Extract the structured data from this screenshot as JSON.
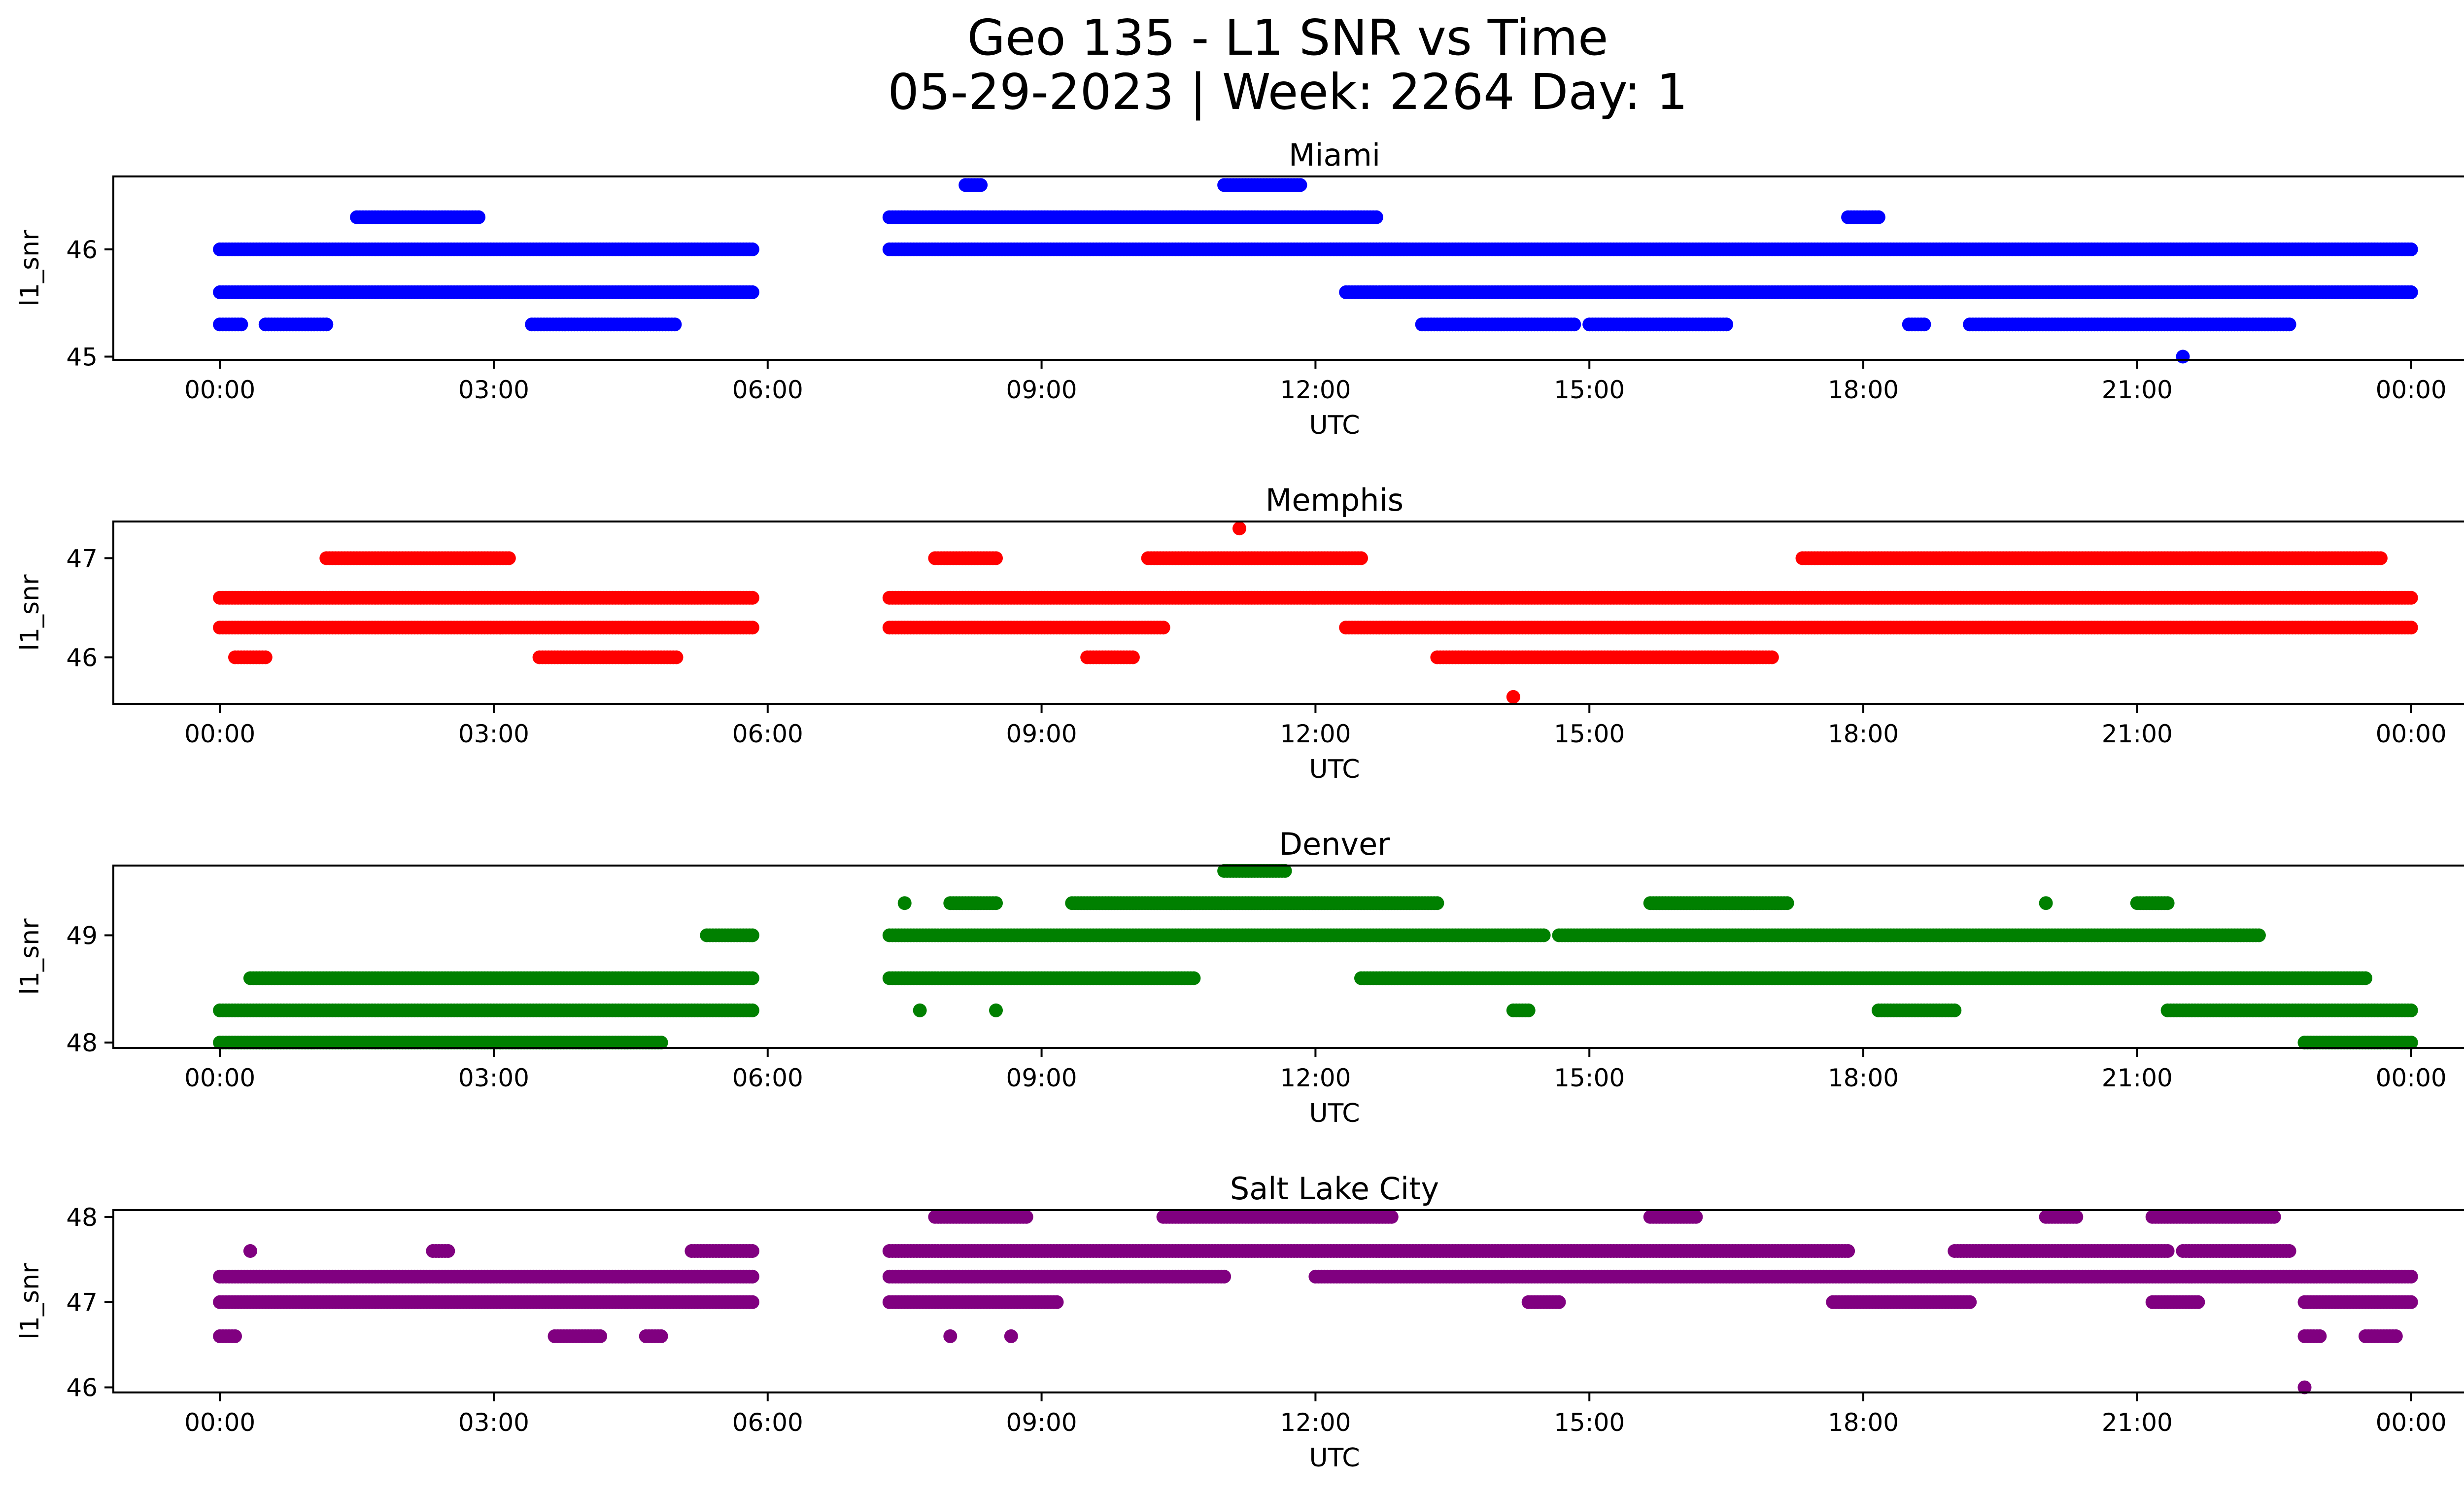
{
  "figure": {
    "title_line1": "Geo 135 - L1 SNR vs Time",
    "title_line2": "05-29-2023 | Week: 2264 Day: 1"
  },
  "chart_data": [
    {
      "type": "scatter",
      "title": "Miami",
      "color": "#0000ff",
      "xlabel": "UTC",
      "ylabel": "l1_snr",
      "xlim": [
        "2023-05-28 22:50",
        "2023-05-30 01:35"
      ],
      "ylim": [
        44.97,
        46.68
      ],
      "xticks": [
        "00:00",
        "03:00",
        "06:00",
        "09:00",
        "12:00",
        "15:00",
        "18:00",
        "21:00",
        "00:00"
      ],
      "yticks": [
        45,
        46
      ],
      "grid": false,
      "series": [
        {
          "y": 46.0,
          "segments": [
            [
              "00:00",
              "05:50"
            ],
            [
              "07:20",
              "13:00"
            ],
            [
              "12:10",
              "24:00"
            ]
          ]
        },
        {
          "y": 45.6,
          "segments": [
            [
              "00:00",
              "05:50"
            ],
            [
              "12:20",
              "24:00"
            ]
          ]
        },
        {
          "y": 45.3,
          "segments": [
            [
              "00:00",
              "00:15"
            ],
            [
              "00:30",
              "01:10"
            ],
            [
              "03:25",
              "05:00"
            ],
            [
              "13:10",
              "14:50"
            ],
            [
              "15:00",
              "16:30"
            ],
            [
              "18:30",
              "18:40"
            ],
            [
              "19:10",
              "22:40"
            ]
          ]
        },
        {
          "y": 46.3,
          "segments": [
            [
              "01:30",
              "02:50"
            ],
            [
              "07:20",
              "12:40"
            ],
            [
              "17:50",
              "18:10"
            ]
          ]
        },
        {
          "y": 46.6,
          "segments": [
            [
              "08:10",
              "08:20"
            ],
            [
              "11:00",
              "11:50"
            ]
          ]
        },
        {
          "y": 45.0,
          "segments": [
            [
              "21:30",
              "21:30"
            ]
          ]
        }
      ]
    },
    {
      "type": "scatter",
      "title": "Memphis",
      "color": "#ff0000",
      "xlabel": "UTC",
      "ylabel": "l1_snr",
      "xlim": [
        "2023-05-28 22:50",
        "2023-05-30 01:35"
      ],
      "ylim": [
        45.53,
        47.37
      ],
      "xticks": [
        "00:00",
        "03:00",
        "06:00",
        "09:00",
        "12:00",
        "15:00",
        "18:00",
        "21:00",
        "00:00"
      ],
      "yticks": [
        46,
        47
      ],
      "grid": false,
      "series": [
        {
          "y": 46.6,
          "segments": [
            [
              "00:00",
              "05:50"
            ],
            [
              "07:20",
              "24:00"
            ]
          ]
        },
        {
          "y": 46.3,
          "segments": [
            [
              "00:00",
              "05:50"
            ],
            [
              "07:20",
              "10:20"
            ],
            [
              "12:20",
              "24:00"
            ]
          ]
        },
        {
          "y": 46.0,
          "segments": [
            [
              "00:10",
              "00:30"
            ],
            [
              "03:30",
              "05:00"
            ],
            [
              "09:30",
              "10:00"
            ],
            [
              "13:20",
              "17:00"
            ]
          ]
        },
        {
          "y": 47.0,
          "segments": [
            [
              "01:10",
              "03:10"
            ],
            [
              "07:50",
              "08:30"
            ],
            [
              "10:10",
              "12:30"
            ],
            [
              "17:20",
              "23:40"
            ]
          ]
        },
        {
          "y": 47.3,
          "segments": [
            [
              "11:10",
              "11:10"
            ]
          ]
        },
        {
          "y": 45.6,
          "segments": [
            [
              "14:10",
              "14:10"
            ]
          ]
        }
      ]
    },
    {
      "type": "scatter",
      "title": "Denver",
      "color": "#008000",
      "xlabel": "UTC",
      "ylabel": "l1_snr",
      "xlim": [
        "2023-05-28 22:50",
        "2023-05-30 01:35"
      ],
      "ylim": [
        47.95,
        49.65
      ],
      "xticks": [
        "00:00",
        "03:00",
        "06:00",
        "09:00",
        "12:00",
        "15:00",
        "18:00",
        "21:00",
        "00:00"
      ],
      "yticks": [
        48,
        49
      ],
      "grid": false,
      "series": [
        {
          "y": 48.3,
          "segments": [
            [
              "00:00",
              "05:50"
            ],
            [
              "07:40",
              "07:40"
            ],
            [
              "08:30",
              "08:30"
            ],
            [
              "14:10",
              "14:20"
            ],
            [
              "18:10",
              "19:00"
            ],
            [
              "21:20",
              "24:00"
            ]
          ]
        },
        {
          "y": 48.0,
          "segments": [
            [
              "00:00",
              "04:50"
            ],
            [
              "22:50",
              "24:00"
            ]
          ]
        },
        {
          "y": 48.6,
          "segments": [
            [
              "00:20",
              "05:50"
            ],
            [
              "07:20",
              "10:40"
            ],
            [
              "12:30",
              "23:30"
            ]
          ]
        },
        {
          "y": 49.0,
          "segments": [
            [
              "05:20",
              "05:50"
            ],
            [
              "07:20",
              "14:30"
            ],
            [
              "14:40",
              "22:20"
            ]
          ]
        },
        {
          "y": 49.3,
          "segments": [
            [
              "07:30",
              "07:30"
            ],
            [
              "08:00",
              "08:30"
            ],
            [
              "09:20",
              "13:20"
            ],
            [
              "15:40",
              "17:10"
            ],
            [
              "20:00",
              "20:00"
            ],
            [
              "21:00",
              "21:20"
            ]
          ]
        },
        {
          "y": 49.6,
          "segments": [
            [
              "11:00",
              "11:40"
            ]
          ]
        }
      ]
    },
    {
      "type": "scatter",
      "title": "Salt Lake City",
      "color": "#800080",
      "xlabel": "UTC",
      "ylabel": "l1_snr",
      "xlim": [
        "2023-05-28 22:50",
        "2023-05-30 01:35"
      ],
      "ylim": [
        45.94,
        48.08
      ],
      "xticks": [
        "00:00",
        "03:00",
        "06:00",
        "09:00",
        "12:00",
        "15:00",
        "18:00",
        "21:00",
        "00:00"
      ],
      "yticks": [
        46,
        47,
        48
      ],
      "grid": false,
      "series": [
        {
          "y": 47.0,
          "segments": [
            [
              "00:00",
              "05:50"
            ],
            [
              "07:20",
              "09:10"
            ],
            [
              "14:20",
              "14:40"
            ],
            [
              "17:40",
              "19:10"
            ],
            [
              "21:10",
              "21:40"
            ],
            [
              "22:50",
              "24:00"
            ]
          ]
        },
        {
          "y": 47.3,
          "segments": [
            [
              "00:00",
              "05:50"
            ],
            [
              "07:20",
              "11:00"
            ],
            [
              "12:00",
              "24:00"
            ]
          ]
        },
        {
          "y": 46.6,
          "segments": [
            [
              "00:00",
              "00:10"
            ],
            [
              "03:40",
              "04:10"
            ],
            [
              "04:40",
              "04:50"
            ],
            [
              "08:00",
              "08:00"
            ],
            [
              "08:40",
              "08:40"
            ],
            [
              "22:50",
              "23:00"
            ],
            [
              "23:30",
              "23:50"
            ]
          ]
        },
        {
          "y": 47.6,
          "segments": [
            [
              "00:20",
              "00:20"
            ],
            [
              "02:20",
              "02:30"
            ],
            [
              "05:10",
              "05:50"
            ],
            [
              "07:20",
              "17:50"
            ],
            [
              "19:00",
              "21:20"
            ],
            [
              "21:30",
              "22:40"
            ]
          ]
        },
        {
          "y": 48.0,
          "segments": [
            [
              "07:50",
              "08:50"
            ],
            [
              "10:20",
              "12:50"
            ],
            [
              "15:40",
              "16:10"
            ],
            [
              "20:00",
              "20:20"
            ],
            [
              "21:10",
              "22:30"
            ]
          ]
        },
        {
          "y": 46.0,
          "segments": [
            [
              "22:50",
              "22:50"
            ]
          ]
        }
      ]
    }
  ]
}
